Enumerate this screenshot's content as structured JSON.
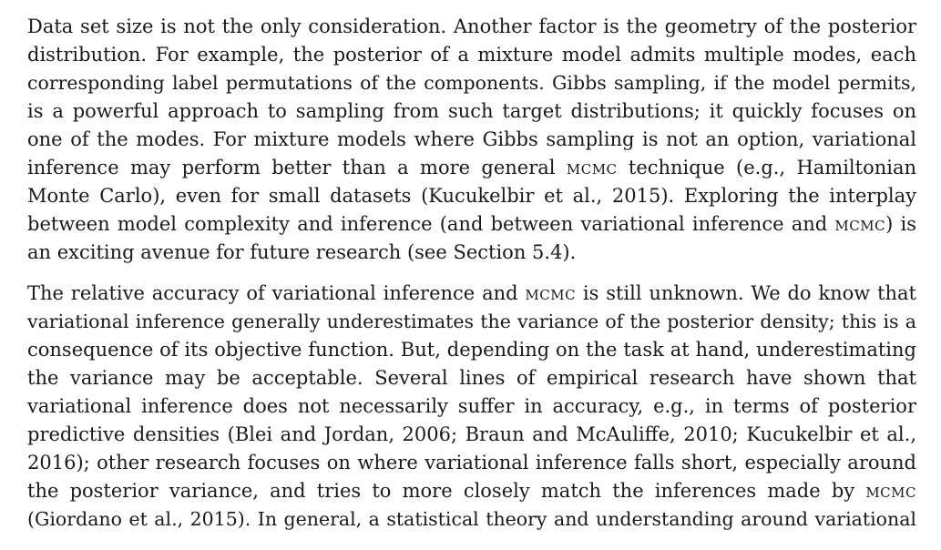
{
  "paragraphs": [
    {
      "lines": [
        [
          "Data set size is not the only consideration. Another factor is the geometry of the posterior"
        ],
        [
          "distribution. For example, the posterior of a mixture model admits multiple modes, each"
        ],
        [
          "corresponding label permutations of the components. Gibbs sampling, if the model permits,"
        ],
        [
          "is a powerful approach to sampling from such target distributions; it quickly focuses on"
        ],
        [
          "one of the modes. For mixture models where Gibbs sampling is not an option, variational"
        ],
        [
          "inference may perform better than a more general ",
          "MCMC",
          " technique (e.g., Hamiltonian"
        ],
        [
          "Monte Carlo), even for small datasets (Kucukelbir et al., 2015). Exploring the interplay"
        ],
        [
          "between model complexity and inference (and between variational inference and ",
          "MCMC",
          ") is"
        ],
        [
          "an exciting avenue for future research (see Section 5.4)."
        ]
      ]
    },
    {
      "lines": [
        [
          "The relative accuracy of variational inference and ",
          "MCMC",
          " is still unknown. We do know that"
        ],
        [
          "variational inference generally underestimates the variance of the posterior density; this is a"
        ],
        [
          "consequence of its objective function. But, depending on the task at hand, underestimating"
        ],
        [
          "the variance may be acceptable. Several lines of empirical research have shown that"
        ],
        [
          "variational inference does not necessarily suffer in accuracy, e.g., in terms of posterior"
        ],
        [
          "predictive densities (Blei and Jordan, 2006; Braun and McAuliffe, 2010; Kucukelbir et al.,"
        ],
        [
          "2016); other research focuses on where variational inference falls short, especially around"
        ],
        [
          "the posterior variance, and tries to more closely match the inferences made by ",
          "MCMC"
        ],
        [
          "(Giordano et al., 2015). In general, a statistical theory and understanding around variational"
        ]
      ]
    }
  ]
}
